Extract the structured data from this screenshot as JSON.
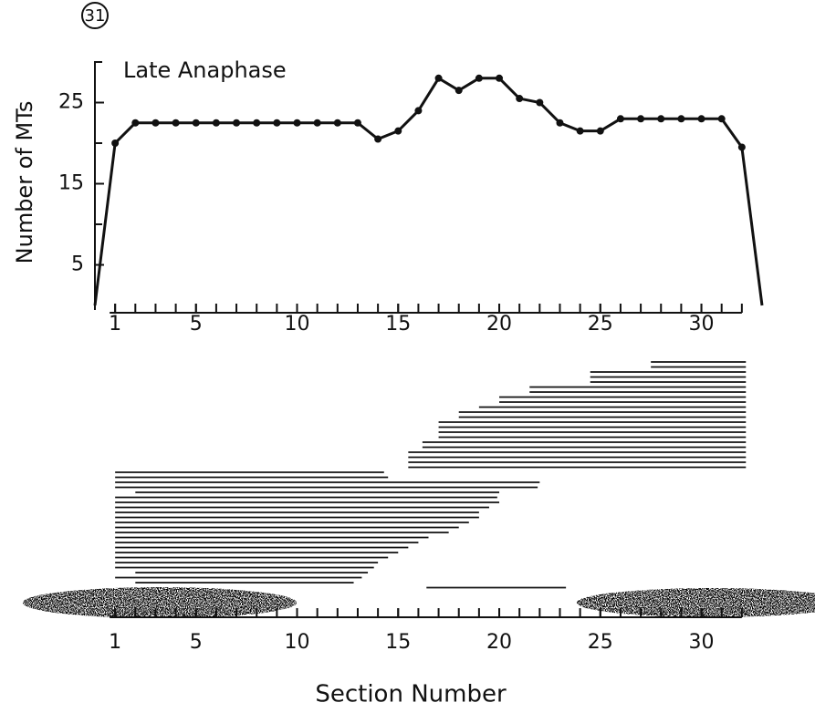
{
  "figure_number": "31",
  "chart_data": [
    {
      "type": "line",
      "title": "Late Anaphase",
      "y_label": "Number of MTs",
      "color": "#111111",
      "x": [
        0,
        1,
        2,
        3,
        4,
        5,
        6,
        7,
        8,
        9,
        10,
        11,
        12,
        13,
        14,
        15,
        16,
        17,
        18,
        19,
        20,
        21,
        22,
        23,
        24,
        25,
        26,
        27,
        28,
        29,
        30,
        31,
        32,
        33
      ],
      "values": [
        0,
        20,
        22.5,
        22.5,
        22.5,
        22.5,
        22.5,
        22.5,
        22.5,
        22.5,
        22.5,
        22.5,
        22.5,
        22.5,
        20.5,
        21.5,
        24,
        28,
        26.5,
        28,
        28,
        25.5,
        25,
        22.5,
        21.5,
        21.5,
        23,
        23,
        23,
        23,
        23,
        23,
        19.5,
        0
      ],
      "xlim": [
        0,
        33
      ],
      "xticks": [
        1,
        5,
        10,
        15,
        20,
        25,
        30
      ],
      "xminorticks": [
        1,
        2,
        3,
        4,
        5,
        6,
        7,
        8,
        9,
        10,
        11,
        12,
        13,
        14,
        15,
        16,
        17,
        18,
        19,
        20,
        21,
        22,
        23,
        24,
        25,
        26,
        27,
        28,
        29,
        30,
        31,
        32
      ],
      "ylim": [
        0,
        30
      ],
      "yticks": [
        5,
        15,
        25
      ],
      "yminorticks": [
        10,
        20,
        30
      ]
    },
    {
      "type": "segments",
      "x_label": "Section Number",
      "color": "#111111",
      "segments": [
        [
          27.5,
          32.2
        ],
        [
          27.5,
          32.2
        ],
        [
          24.5,
          32.2
        ],
        [
          24.5,
          32.2
        ],
        [
          24.5,
          32.2
        ],
        [
          21.5,
          32.2
        ],
        [
          21.5,
          32.2
        ],
        [
          20,
          32.2
        ],
        [
          20,
          32.2
        ],
        [
          19,
          32.2
        ],
        [
          18,
          32.2
        ],
        [
          18,
          32.2
        ],
        [
          17,
          32.2
        ],
        [
          17,
          32.2
        ],
        [
          17,
          32.2
        ],
        [
          17,
          32.2
        ],
        [
          16.2,
          32.2
        ],
        [
          16.2,
          32.2
        ],
        [
          15.5,
          32.2
        ],
        [
          15.5,
          32.2
        ],
        [
          15.5,
          32.2
        ],
        [
          15.5,
          32.2
        ],
        [
          1,
          14.3
        ],
        [
          1,
          14.5
        ],
        [
          1,
          22
        ],
        [
          1,
          21.9
        ],
        [
          2,
          20
        ],
        [
          1,
          19.9
        ],
        [
          1,
          20
        ],
        [
          1,
          19.5
        ],
        [
          1,
          19
        ],
        [
          1,
          19
        ],
        [
          1,
          18.5
        ],
        [
          1,
          18
        ],
        [
          1,
          17.5
        ],
        [
          1,
          16.5
        ],
        [
          1,
          16
        ],
        [
          1,
          15.5
        ],
        [
          1,
          15
        ],
        [
          1,
          14.5
        ],
        [
          1,
          14
        ],
        [
          1,
          13.8
        ],
        [
          2,
          13.5
        ],
        [
          1,
          13.2
        ],
        [
          2,
          12.8
        ],
        [
          16.4,
          23.3
        ]
      ],
      "xlim": [
        0,
        33
      ],
      "xticks": [
        1,
        5,
        10,
        15,
        20,
        25,
        30
      ],
      "xminorticks": [
        1,
        2,
        3,
        4,
        5,
        6,
        7,
        8,
        9,
        10,
        11,
        12,
        13,
        14,
        15,
        16,
        17,
        18,
        19,
        20,
        21,
        22,
        23,
        24,
        25,
        26,
        27,
        28,
        29,
        30,
        31,
        32
      ]
    }
  ]
}
